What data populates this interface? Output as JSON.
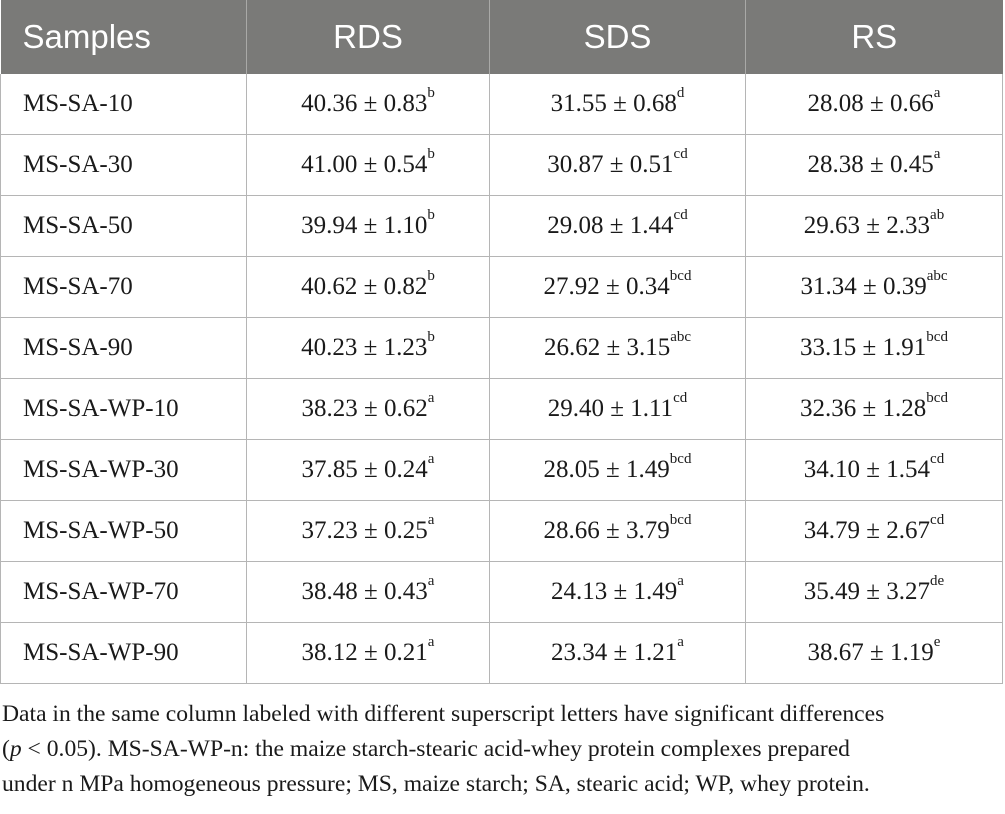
{
  "table": {
    "headers": [
      "Samples",
      "RDS",
      "SDS",
      "RS"
    ],
    "rows": [
      {
        "sample": "MS-SA-10",
        "rds": {
          "value": "40.36 ± 0.83",
          "sup": "b"
        },
        "sds": {
          "value": "31.55 ± 0.68",
          "sup": "d"
        },
        "rs": {
          "value": "28.08 ± 0.66",
          "sup": "a"
        }
      },
      {
        "sample": "MS-SA-30",
        "rds": {
          "value": "41.00 ± 0.54",
          "sup": "b"
        },
        "sds": {
          "value": "30.87 ± 0.51",
          "sup": "cd"
        },
        "rs": {
          "value": "28.38 ± 0.45",
          "sup": "a"
        }
      },
      {
        "sample": "MS-SA-50",
        "rds": {
          "value": "39.94 ± 1.10",
          "sup": "b"
        },
        "sds": {
          "value": "29.08 ± 1.44",
          "sup": "cd"
        },
        "rs": {
          "value": "29.63 ± 2.33",
          "sup": "ab"
        }
      },
      {
        "sample": "MS-SA-70",
        "rds": {
          "value": "40.62 ± 0.82",
          "sup": "b"
        },
        "sds": {
          "value": "27.92 ± 0.34",
          "sup": "bcd"
        },
        "rs": {
          "value": "31.34 ± 0.39",
          "sup": "abc"
        }
      },
      {
        "sample": "MS-SA-90",
        "rds": {
          "value": "40.23 ± 1.23",
          "sup": "b"
        },
        "sds": {
          "value": "26.62 ± 3.15",
          "sup": "abc"
        },
        "rs": {
          "value": "33.15 ± 1.91",
          "sup": "bcd"
        }
      },
      {
        "sample": "MS-SA-WP-10",
        "rds": {
          "value": "38.23 ± 0.62",
          "sup": "a"
        },
        "sds": {
          "value": "29.40 ± 1.11",
          "sup": "cd"
        },
        "rs": {
          "value": "32.36 ± 1.28",
          "sup": "bcd"
        }
      },
      {
        "sample": "MS-SA-WP-30",
        "rds": {
          "value": "37.85 ± 0.24",
          "sup": "a"
        },
        "sds": {
          "value": "28.05 ± 1.49",
          "sup": "bcd"
        },
        "rs": {
          "value": "34.10 ± 1.54",
          "sup": "cd"
        }
      },
      {
        "sample": "MS-SA-WP-50",
        "rds": {
          "value": "37.23 ± 0.25",
          "sup": "a"
        },
        "sds": {
          "value": "28.66 ± 3.79",
          "sup": "bcd"
        },
        "rs": {
          "value": "34.79 ± 2.67",
          "sup": "cd"
        }
      },
      {
        "sample": "MS-SA-WP-70",
        "rds": {
          "value": "38.48 ± 0.43",
          "sup": "a"
        },
        "sds": {
          "value": "24.13 ± 1.49",
          "sup": "a"
        },
        "rs": {
          "value": "35.49 ± 3.27",
          "sup": "de"
        }
      },
      {
        "sample": "MS-SA-WP-90",
        "rds": {
          "value": "38.12 ± 0.21",
          "sup": "a"
        },
        "sds": {
          "value": "23.34 ± 1.21",
          "sup": "a"
        },
        "rs": {
          "value": "38.67 ± 1.19",
          "sup": "e"
        }
      }
    ]
  },
  "footnote": {
    "line1": "Data in the same column labeled with different superscript letters have significant differences",
    "line2_open": "(",
    "line2_p": "p",
    "line2_rest": " < 0.05). MS-SA-WP-n: the maize starch-stearic acid-whey protein complexes prepared",
    "line3": "under n MPa homogeneous pressure; MS, maize starch; SA, stearic acid; WP, whey protein."
  },
  "colors": {
    "header_bg": "#7a7a78",
    "header_text": "#ffffff",
    "grid": "#b5b5b5",
    "text": "#1a1a1a"
  }
}
